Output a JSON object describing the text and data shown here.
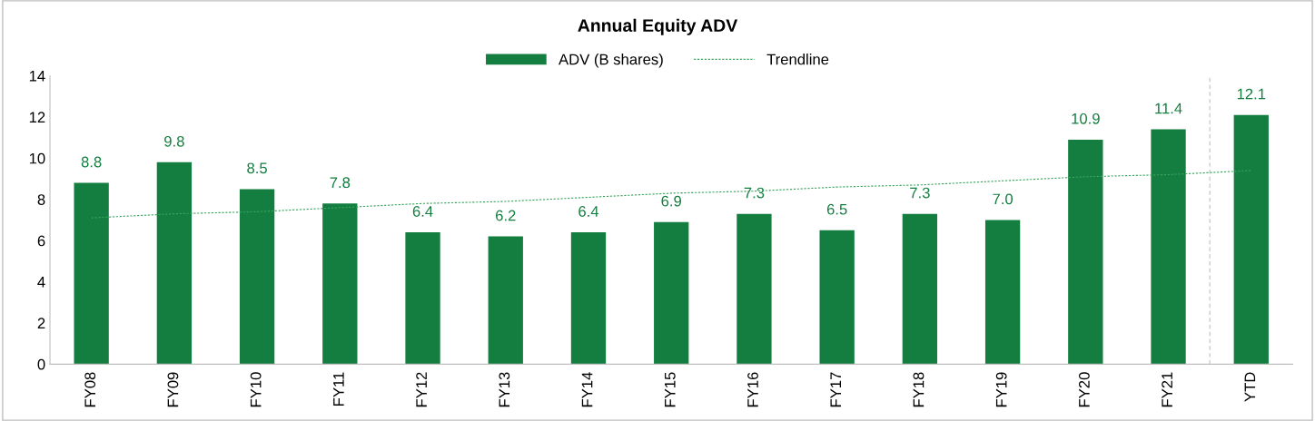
{
  "chart_data": {
    "type": "bar",
    "title": "Annual Equity ADV",
    "categories": [
      "FY08",
      "FY09",
      "FY10",
      "FY11",
      "FY12",
      "FY13",
      "FY14",
      "FY15",
      "FY16",
      "FY17",
      "FY18",
      "FY19",
      "FY20",
      "FY21",
      "YTD"
    ],
    "series": [
      {
        "name": "ADV (B shares)",
        "color": "#137e3f",
        "values": [
          8.8,
          9.8,
          8.5,
          7.8,
          6.4,
          6.2,
          6.4,
          6.9,
          7.3,
          6.5,
          7.3,
          7.0,
          10.9,
          11.4,
          12.1
        ],
        "value_labels": [
          "8.8",
          "9.8",
          "8.5",
          "7.8",
          "6.4",
          "6.2",
          "6.4",
          "6.9",
          "7.3",
          "6.5",
          "7.3",
          "7.0",
          "10.9",
          "11.4",
          "12.1"
        ]
      },
      {
        "name": "Trendline",
        "type": "line",
        "color": "#3aa35f",
        "line_style": "dotted",
        "values": [
          7.1,
          7.3,
          7.4,
          7.6,
          7.8,
          7.9,
          8.1,
          8.3,
          8.4,
          8.6,
          8.7,
          8.9,
          9.1,
          9.2,
          9.4
        ]
      }
    ],
    "ylim": [
      0,
      14
    ],
    "yticks": [
      0,
      2,
      4,
      6,
      8,
      10,
      12,
      14
    ],
    "grid": false,
    "legend": "top"
  }
}
